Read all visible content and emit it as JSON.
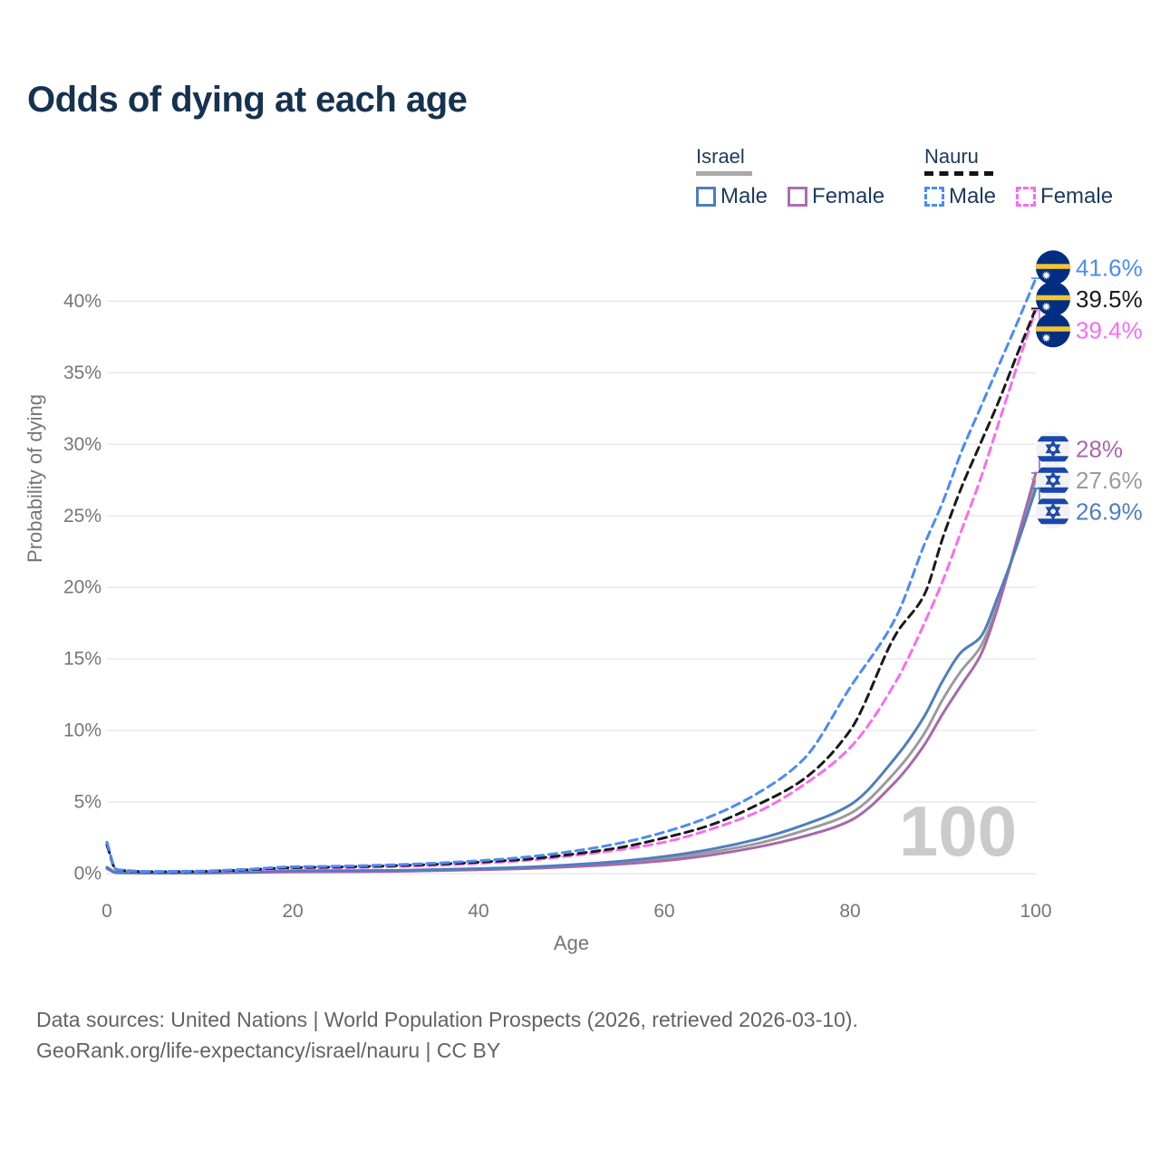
{
  "title": "Odds of dying at each age",
  "legend": {
    "israel": {
      "label": "Israel",
      "male": "Male",
      "female": "Female"
    },
    "nauru": {
      "label": "Nauru",
      "male": "Male",
      "female": "Female"
    }
  },
  "footer": {
    "line1": "Data sources: United Nations | World Population Prospects (2026, retrieved 2026-03-10).",
    "line2": "GeoRank.org/life-expectancy/israel/nauru | CC BY"
  },
  "colors": {
    "title": "#16324f",
    "legend_text": "#1d3a5c",
    "grid": "#e9e9e9",
    "tick_text": "#767676",
    "watermark": "#cbcbcb",
    "israel_male": "#4e7ec0",
    "israel_female": "#a868aa",
    "israel_both": "#9b9b9b",
    "nauru_male": "#4b8bf5",
    "nauru_female": "#f96cef",
    "nauru_both": "#1a1a1a",
    "israel_flag_blue": "#1a47a8",
    "nauru_flag_blue": "#012e80",
    "nauru_flag_yellow": "#f6c433"
  },
  "chart_data": {
    "type": "line",
    "title": "Odds of dying at each age",
    "xlabel": "Age",
    "ylabel": "Probability of dying",
    "watermark": "100",
    "grid": true,
    "legend_position": "top-right",
    "xlim": [
      0,
      100
    ],
    "ylim_percent": [
      0,
      42
    ],
    "x_ticks": [
      0,
      20,
      40,
      60,
      80,
      100
    ],
    "y_ticks_percent": [
      0,
      5,
      10,
      15,
      20,
      25,
      30,
      35,
      40
    ],
    "y_tick_labels": [
      "0%",
      "5%",
      "10%",
      "15%",
      "20%",
      "25%",
      "30%",
      "35%",
      "40%"
    ],
    "ages": [
      0,
      1,
      5,
      10,
      15,
      20,
      25,
      30,
      35,
      40,
      45,
      50,
      55,
      60,
      65,
      70,
      75,
      80,
      85,
      88,
      90,
      92,
      94,
      96,
      98,
      100
    ],
    "series": [
      {
        "id": "israel_both",
        "name": "Israel both sexes",
        "country": "Israel",
        "sex": "both",
        "style": "solid",
        "color": "#9b9b9b",
        "values": [
          0.4,
          0.07,
          0.04,
          0.05,
          0.1,
          0.16,
          0.17,
          0.19,
          0.24,
          0.31,
          0.4,
          0.55,
          0.75,
          1.05,
          1.5,
          2.1,
          3.0,
          4.2,
          7.2,
          9.8,
          12.2,
          14.2,
          15.8,
          19.0,
          23.2,
          27.6
        ]
      },
      {
        "id": "israel_female",
        "name": "Israel female",
        "country": "Israel",
        "sex": "female",
        "style": "solid",
        "color": "#a868aa",
        "values": [
          0.35,
          0.06,
          0.04,
          0.04,
          0.08,
          0.12,
          0.13,
          0.15,
          0.2,
          0.27,
          0.35,
          0.48,
          0.65,
          0.9,
          1.3,
          1.85,
          2.6,
          3.7,
          6.5,
          9.0,
          11.2,
          13.2,
          15.2,
          18.8,
          23.4,
          28.0
        ]
      },
      {
        "id": "israel_male",
        "name": "Israel male",
        "country": "Israel",
        "sex": "male",
        "style": "solid",
        "color": "#4e7ec0",
        "values": [
          0.45,
          0.08,
          0.05,
          0.06,
          0.12,
          0.2,
          0.2,
          0.22,
          0.28,
          0.35,
          0.45,
          0.62,
          0.85,
          1.2,
          1.7,
          2.4,
          3.4,
          4.8,
          8.2,
          11.0,
          13.5,
          15.5,
          16.5,
          19.5,
          23.0,
          26.9
        ]
      },
      {
        "id": "nauru_female",
        "name": "Nauru female",
        "country": "Nauru",
        "sex": "female",
        "style": "dashed",
        "color": "#f96cef",
        "values": [
          2.1,
          0.26,
          0.12,
          0.14,
          0.22,
          0.35,
          0.4,
          0.47,
          0.57,
          0.72,
          0.92,
          1.25,
          1.65,
          2.2,
          3.1,
          4.3,
          6.2,
          8.8,
          13.5,
          17.5,
          20.5,
          24.0,
          27.5,
          31.5,
          35.5,
          39.4
        ]
      },
      {
        "id": "nauru_both",
        "name": "Nauru both sexes",
        "country": "Nauru",
        "sex": "both",
        "style": "dashed",
        "color": "#1a1a1a",
        "values": [
          2.0,
          0.28,
          0.13,
          0.16,
          0.26,
          0.42,
          0.46,
          0.54,
          0.64,
          0.8,
          1.0,
          1.35,
          1.8,
          2.5,
          3.4,
          4.8,
          6.6,
          10.0,
          16.8,
          19.5,
          23.5,
          27.0,
          30.0,
          33.0,
          36.3,
          39.5
        ]
      },
      {
        "id": "nauru_male",
        "name": "Nauru male",
        "country": "Nauru",
        "sex": "male",
        "style": "dashed",
        "color": "#4b8bf5",
        "values": [
          2.2,
          0.3,
          0.15,
          0.18,
          0.3,
          0.48,
          0.52,
          0.6,
          0.72,
          0.9,
          1.15,
          1.55,
          2.1,
          2.9,
          4.0,
          5.6,
          8.0,
          13.0,
          18.0,
          23.0,
          26.0,
          29.5,
          32.5,
          35.5,
          38.5,
          41.6
        ]
      }
    ],
    "end_labels": [
      {
        "series": "nauru_male",
        "text": "41.6%",
        "value": 41.6,
        "flag": "nauru",
        "color": "#4b8bf5"
      },
      {
        "series": "nauru_both",
        "text": "39.5%",
        "value": 39.5,
        "flag": "nauru",
        "color": "#1a1a1a"
      },
      {
        "series": "nauru_female",
        "text": "39.4%",
        "value": 39.4,
        "flag": "nauru",
        "color": "#f96cef"
      },
      {
        "series": "israel_female",
        "text": "28%",
        "value": 28.0,
        "flag": "israel",
        "color": "#a868aa"
      },
      {
        "series": "israel_both",
        "text": "27.6%",
        "value": 27.6,
        "flag": "israel",
        "color": "#9b9b9b"
      },
      {
        "series": "israel_male",
        "text": "26.9%",
        "value": 26.9,
        "flag": "israel",
        "color": "#4e7ec0"
      }
    ]
  }
}
